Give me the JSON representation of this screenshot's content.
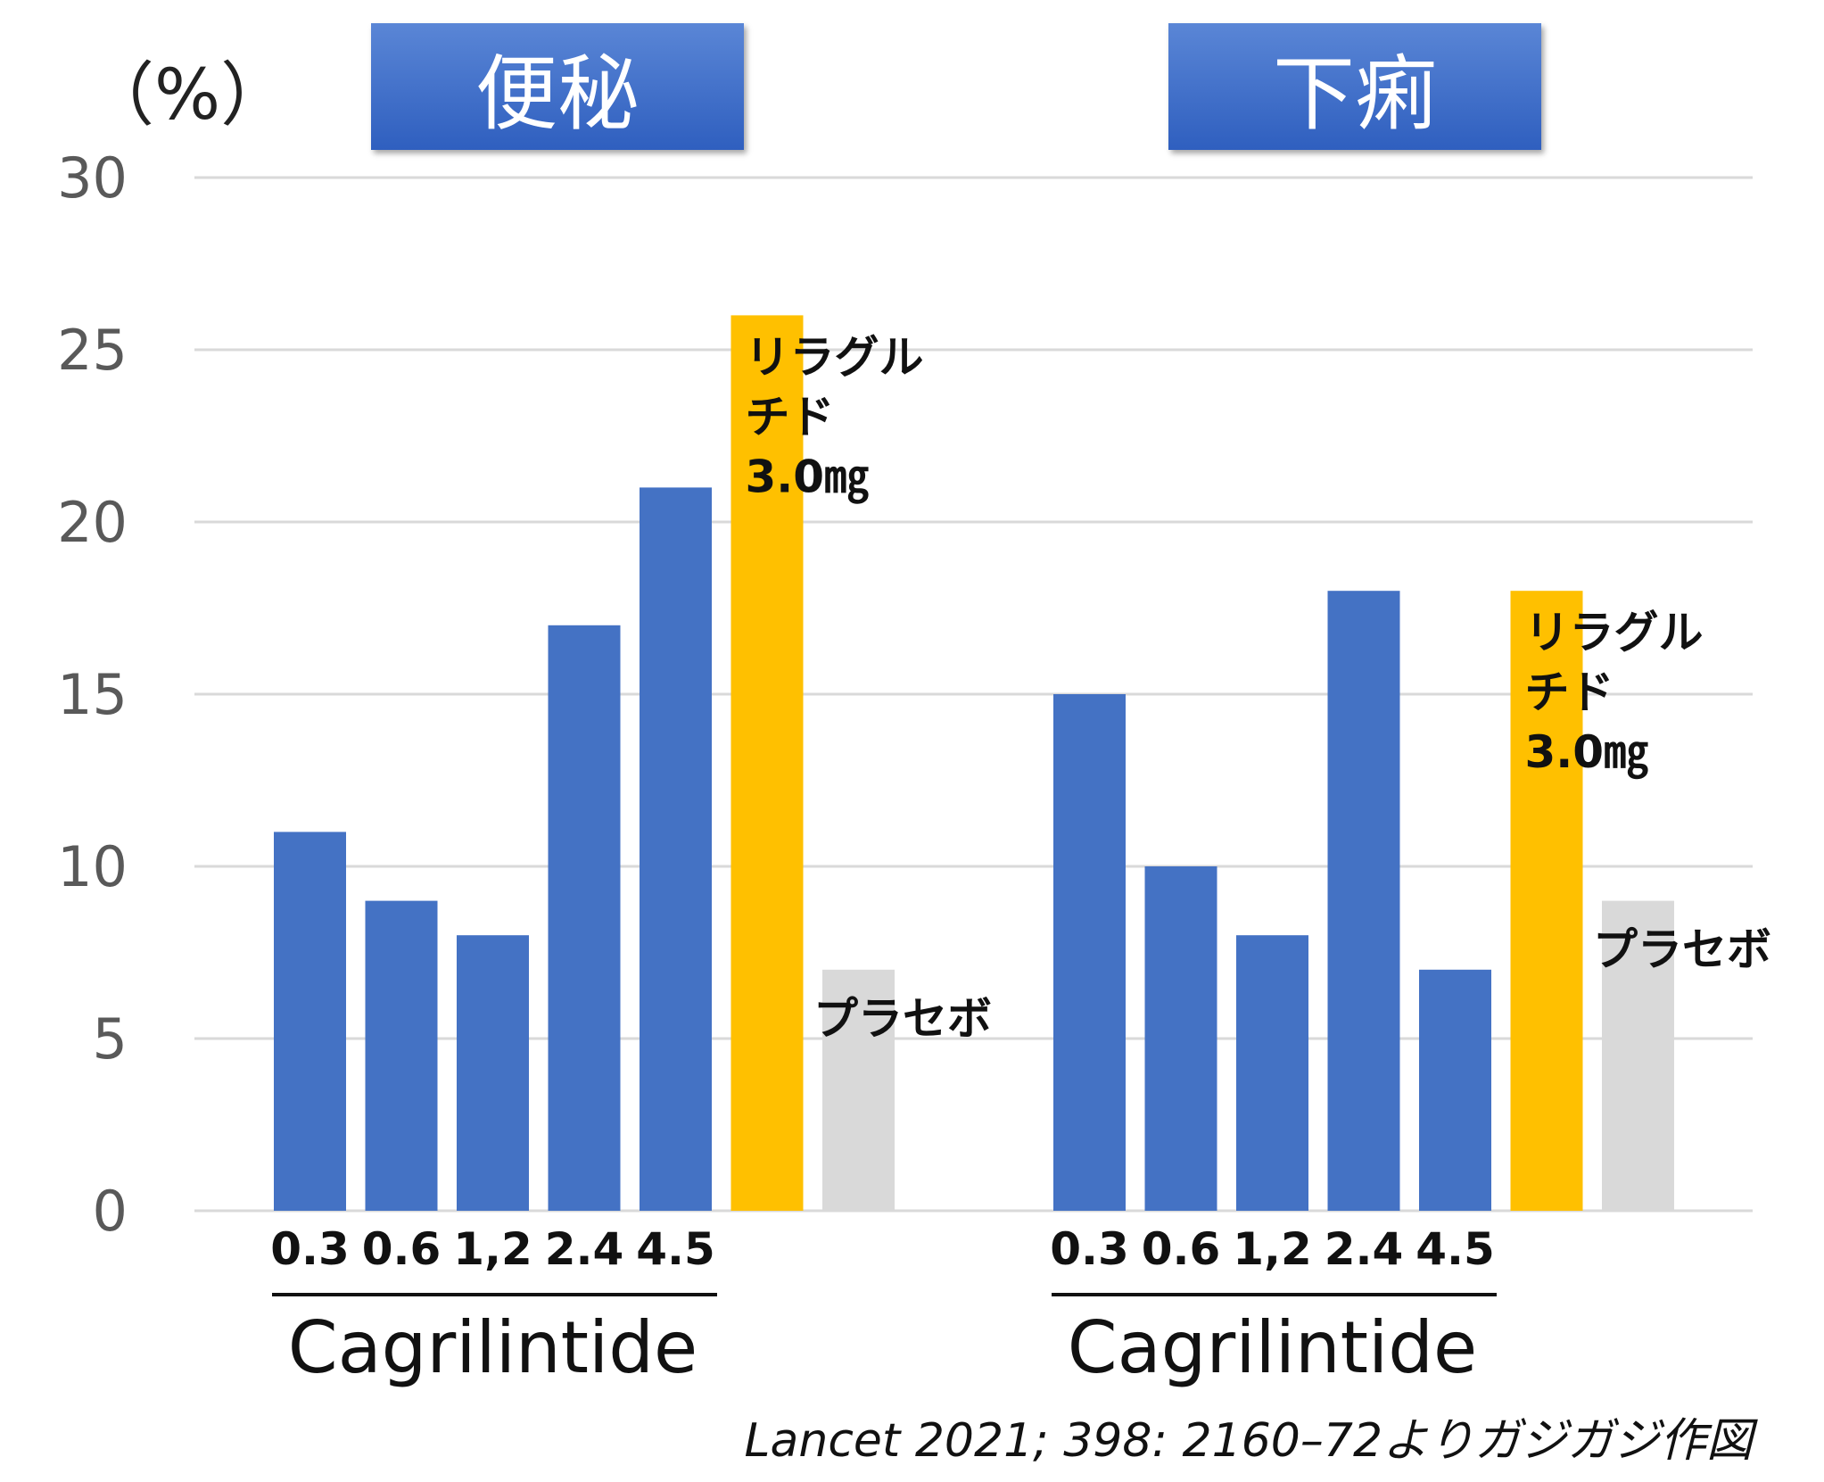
{
  "unit_label": "（%）",
  "panels": [
    {
      "title": "便秘"
    },
    {
      "title": "下痢"
    }
  ],
  "source": "Lancet 2021; 398: 2160–72よりガジガジ作図",
  "chart_data": [
    {
      "type": "bar",
      "title": "便秘",
      "ylabel": "（%）",
      "ylim": [
        0,
        30
      ],
      "yticks": [
        0,
        5,
        10,
        15,
        20,
        25,
        30
      ],
      "grid": true,
      "categories": [
        "0.3",
        "0.6",
        "1,2",
        "2.4",
        "4.5",
        "リラグルチド3.0㎎",
        "プラセボ"
      ],
      "values": [
        11,
        9,
        8,
        17,
        21,
        26,
        7
      ],
      "colors": [
        "#4472c4",
        "#4472c4",
        "#4472c4",
        "#4472c4",
        "#4472c4",
        "#ffc000",
        "#d9d9d9"
      ],
      "group_label": "Cagrilintide",
      "annotations": [
        {
          "text": [
            "リラグル",
            "チド",
            "3.0㎎"
          ]
        },
        {
          "text": [
            "プラセボ"
          ]
        }
      ]
    },
    {
      "type": "bar",
      "title": "下痢",
      "ylabel": "（%）",
      "ylim": [
        0,
        30
      ],
      "yticks": [
        0,
        5,
        10,
        15,
        20,
        25,
        30
      ],
      "grid": true,
      "categories": [
        "0.3",
        "0.6",
        "1,2",
        "2.4",
        "4.5",
        "リラグルチド3.0㎎",
        "プラセボ"
      ],
      "values": [
        15,
        10,
        8,
        18,
        7,
        18,
        9
      ],
      "colors": [
        "#4472c4",
        "#4472c4",
        "#4472c4",
        "#4472c4",
        "#4472c4",
        "#ffc000",
        "#d9d9d9"
      ],
      "group_label": "Cagrilintide",
      "annotations": [
        {
          "text": [
            "リラグル",
            "チド",
            "3.0㎎"
          ]
        },
        {
          "text": [
            "プラセボ"
          ]
        }
      ]
    }
  ]
}
